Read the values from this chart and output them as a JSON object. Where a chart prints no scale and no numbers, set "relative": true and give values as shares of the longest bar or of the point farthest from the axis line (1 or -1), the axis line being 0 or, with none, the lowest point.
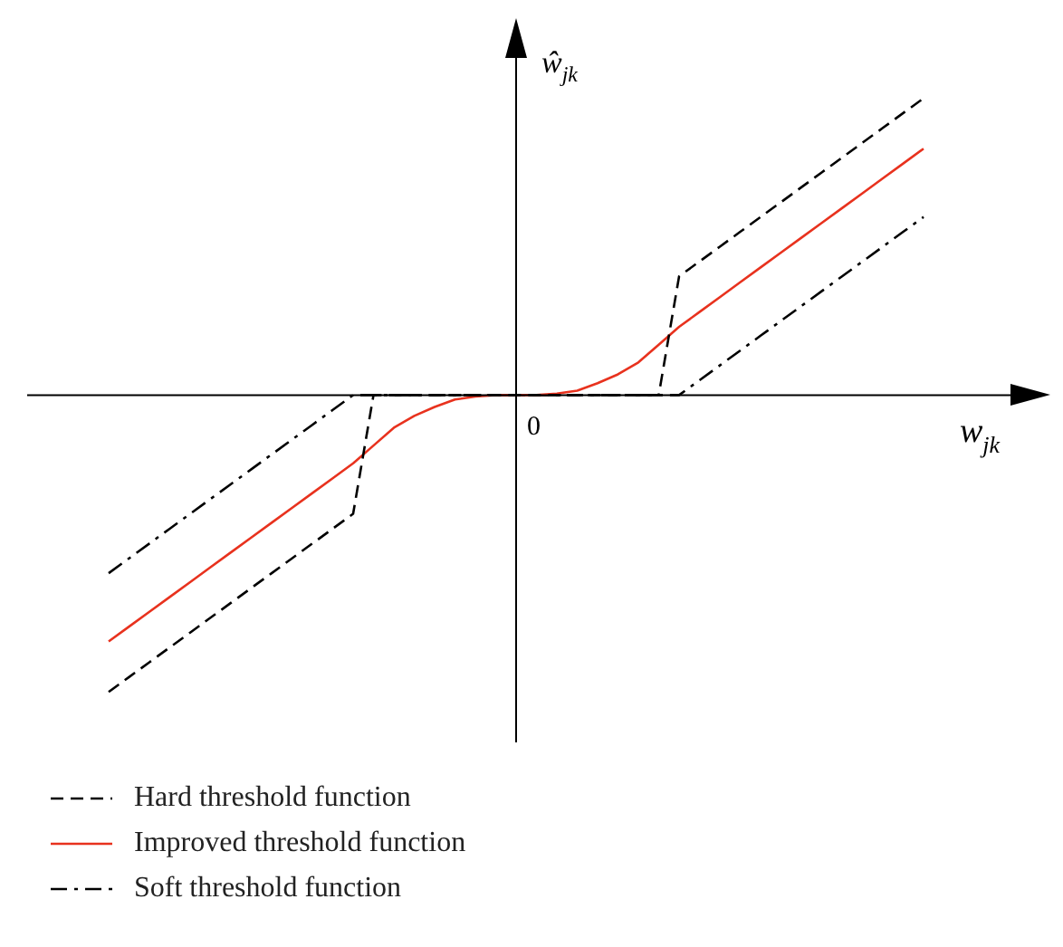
{
  "chart_data": {
    "type": "line",
    "relative": true,
    "xlabel": "w$_{jk}$",
    "ylabel": "ŵ$_{jk}$",
    "annotations": [
      "0"
    ],
    "legend": "bottom",
    "grid": false,
    "marker": "none",
    "categories": [
      null,
      null,
      null,
      null,
      null,
      null,
      null,
      null,
      null,
      null,
      null,
      null,
      null,
      null,
      null,
      null,
      null,
      null,
      null,
      null,
      null,
      null,
      null,
      null,
      null,
      null,
      null,
      null,
      null,
      null,
      null,
      null,
      null,
      null,
      null,
      null,
      null,
      null,
      null,
      null,
      null
    ],
    "series": [
      {
        "name": "Hard threshold function",
        "color": "#000000",
        "line_style": "dashed",
        "values": [
          -1,
          -0.95,
          -0.9,
          -0.85,
          -0.8,
          -0.75,
          -0.7,
          -0.65,
          -0.6,
          -0.55,
          -0.5,
          -0.45,
          -0.4,
          0,
          0,
          0,
          0,
          0,
          0,
          0,
          0,
          0,
          0,
          0,
          0,
          0,
          0,
          0,
          0.4,
          0.45,
          0.5,
          0.55,
          0.6,
          0.65,
          0.7,
          0.75,
          0.8,
          0.85,
          0.9,
          0.95,
          1
        ]
      },
      {
        "name": "Improved threshold function",
        "color": "#e8321e",
        "line_style": "solid",
        "values": [
          -0.83,
          -0.78,
          -0.73,
          -0.68,
          -0.63,
          -0.58,
          -0.53,
          -0.48,
          -0.43,
          -0.38,
          -0.33,
          -0.28,
          -0.23,
          -0.17,
          -0.11,
          -0.07,
          -0.04,
          -0.015,
          -0.005,
          0,
          0,
          0,
          0.005,
          0.015,
          0.04,
          0.07,
          0.11,
          0.17,
          0.23,
          0.28,
          0.33,
          0.38,
          0.43,
          0.48,
          0.53,
          0.58,
          0.63,
          0.68,
          0.73,
          0.78,
          0.83
        ]
      },
      {
        "name": "Soft threshold function",
        "color": "#000000",
        "line_style": "dashdot",
        "values": [
          -0.6,
          -0.55,
          -0.5,
          -0.45,
          -0.4,
          -0.35,
          -0.3,
          -0.25,
          -0.2,
          -0.15,
          -0.1,
          -0.05,
          0,
          0,
          0,
          0,
          0,
          0,
          0,
          0,
          0,
          0,
          0,
          0,
          0,
          0,
          0,
          0,
          0,
          0.05,
          0.1,
          0.15,
          0.2,
          0.25,
          0.3,
          0.35,
          0.4,
          0.45,
          0.5,
          0.55,
          0.6
        ]
      }
    ]
  }
}
